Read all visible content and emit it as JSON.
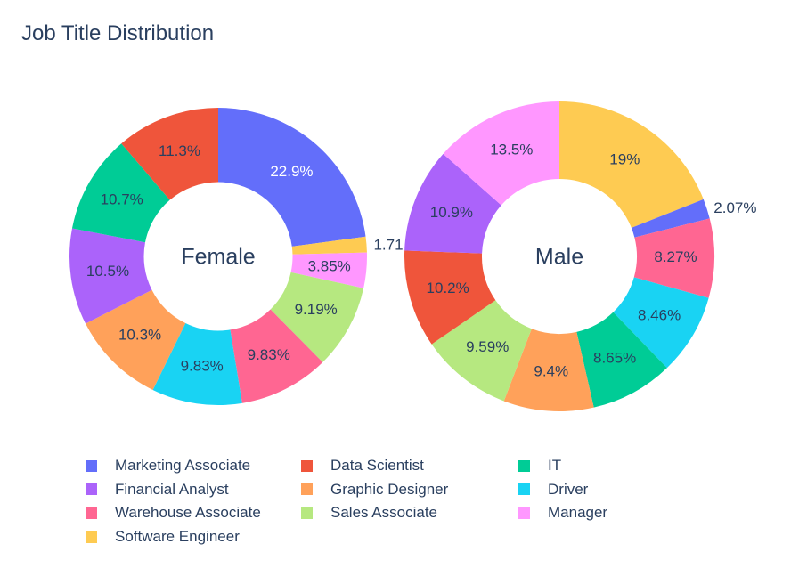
{
  "chart_data": {
    "type": "pie",
    "title": "Job Title Distribution",
    "hole": 0.5,
    "categories": [
      "Marketing Associate",
      "Financial Analyst",
      "Warehouse Associate",
      "Software Engineer",
      "Data Scientist",
      "Graphic Designer",
      "Sales Associate",
      "IT",
      "Driver",
      "Manager"
    ],
    "colors": {
      "Marketing Associate": "#636efa",
      "Data Scientist": "#EF553B",
      "IT": "#00cc96",
      "Financial Analyst": "#ab63fa",
      "Graphic Designer": "#FFA15A",
      "Driver": "#19d3f3",
      "Warehouse Associate": "#FF6692",
      "Sales Associate": "#B6E880",
      "Manager": "#FF97FF",
      "Software Engineer": "#FECB52"
    },
    "pies": [
      {
        "center_label": "Female",
        "slices": [
          {
            "label": "Marketing Associate",
            "value": 22.9,
            "text": "22.9%"
          },
          {
            "label": "Software Engineer",
            "value": 1.71,
            "text": "1.71"
          },
          {
            "label": "Manager",
            "value": 3.85,
            "text": "3.85%"
          },
          {
            "label": "Sales Associate",
            "value": 9.19,
            "text": "9.19%"
          },
          {
            "label": "Warehouse Associate",
            "value": 9.83,
            "text": "9.83%"
          },
          {
            "label": "Driver",
            "value": 9.83,
            "text": "9.83%"
          },
          {
            "label": "Graphic Designer",
            "value": 10.3,
            "text": "10.3%"
          },
          {
            "label": "Financial Analyst",
            "value": 10.5,
            "text": "10.5%"
          },
          {
            "label": "IT",
            "value": 10.7,
            "text": "10.7%"
          },
          {
            "label": "Data Scientist",
            "value": 11.3,
            "text": "11.3%"
          }
        ]
      },
      {
        "center_label": "Male",
        "slices": [
          {
            "label": "Software Engineer",
            "value": 19,
            "text": "19%"
          },
          {
            "label": "Marketing Associate",
            "value": 2.07,
            "text": "2.07%"
          },
          {
            "label": "Warehouse Associate",
            "value": 8.27,
            "text": "8.27%"
          },
          {
            "label": "Driver",
            "value": 8.46,
            "text": "8.46%"
          },
          {
            "label": "IT",
            "value": 8.65,
            "text": "8.65%"
          },
          {
            "label": "Graphic Designer",
            "value": 9.4,
            "text": "9.4%"
          },
          {
            "label": "Sales Associate",
            "value": 9.59,
            "text": "9.59%"
          },
          {
            "label": "Data Scientist",
            "value": 10.2,
            "text": "10.2%"
          },
          {
            "label": "Financial Analyst",
            "value": 10.9,
            "text": "10.9%"
          },
          {
            "label": "Manager",
            "value": 13.5,
            "text": "13.5%"
          }
        ]
      }
    ],
    "legend": {
      "placement": "bottom",
      "items": [
        "Marketing Associate",
        "Data Scientist",
        "IT",
        "Financial Analyst",
        "Graphic Designer",
        "Driver",
        "Warehouse Associate",
        "Sales Associate",
        "Manager",
        "Software Engineer"
      ]
    }
  }
}
